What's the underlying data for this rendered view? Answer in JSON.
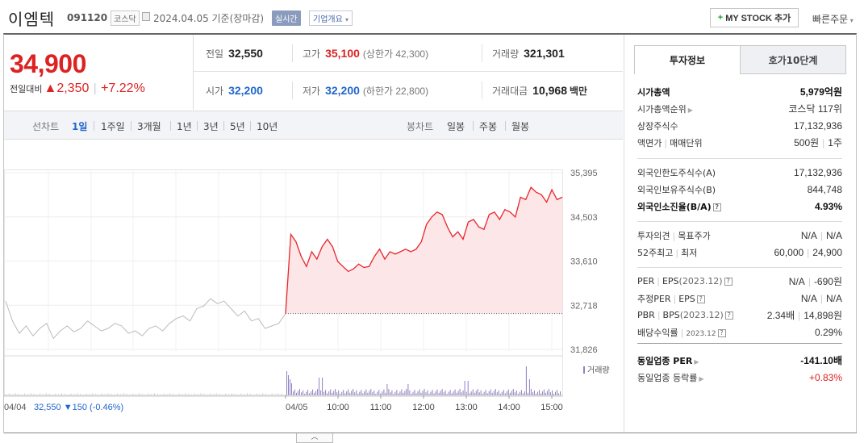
{
  "header": {
    "company_name": "이엠텍",
    "code": "091120",
    "market": "코스닥",
    "date_text": "2024.04.05  기준(장마감)",
    "realtime_label": "실시간",
    "company_info_label": "기업개요",
    "mystock_label": "MY STOCK 추가",
    "quick_order_label": "빠른주문"
  },
  "price": {
    "current": "34,900",
    "change_label": "전일대비",
    "change_value": "▲2,350",
    "change_pct": "+7.22%"
  },
  "stats": {
    "prev_close_label": "전일",
    "prev_close": "32,550",
    "high_label": "고가",
    "high": "35,100",
    "upper_limit": "(상한가 42,300)",
    "volume_label": "거래량",
    "volume": "321,301",
    "open_label": "시가",
    "open": "32,200",
    "low_label": "저가",
    "low": "32,200",
    "lower_limit": "(하한가 22,800)",
    "amount_label": "거래대금",
    "amount": "10,968",
    "amount_unit": "백만"
  },
  "toolbar": {
    "line_chart_label": "선차트",
    "periods": [
      "1일",
      "1주일",
      "3개월",
      "1년",
      "3년",
      "5년",
      "10년"
    ],
    "active_period": "1일",
    "candle_chart_label": "봉차트",
    "candle_periods": [
      "일봉",
      "주봉",
      "월봉"
    ]
  },
  "chart_data": {
    "type": "line",
    "y_ticks": [
      "35,395",
      "34,503",
      "33,610",
      "32,718",
      "31,826"
    ],
    "ylim": [
      31826,
      35395
    ],
    "baseline": 32550,
    "prev_day_label": "04/04",
    "prev_day_summary": "32,550 ▼150 (-0.46%)",
    "today_label": "04/05",
    "x_ticks": [
      "10:00",
      "11:00",
      "12:00",
      "13:00",
      "14:00",
      "15:00"
    ],
    "volume_legend": "거래량",
    "colors": {
      "up": "#e8262a",
      "fill": "#fde6e8",
      "prev": "#bbbbbb",
      "volume": "#8f7fc0",
      "baseline": "#666666"
    },
    "prev_series": [
      32800,
      32400,
      32150,
      32300,
      32100,
      32250,
      32350,
      32050,
      32200,
      32300,
      32180,
      32250,
      32400,
      32300,
      32200,
      32250,
      32350,
      32300,
      32150,
      32200,
      32100,
      32250,
      32300,
      32200,
      32350,
      32450,
      32500,
      32400,
      32650,
      32700,
      32850,
      32750,
      32800,
      32650,
      32500,
      32600,
      32400,
      32450,
      32250,
      32300,
      32350,
      32550
    ],
    "today_series": [
      32550,
      34150,
      34000,
      33700,
      33500,
      33800,
      33650,
      33900,
      34050,
      33900,
      33600,
      33500,
      33400,
      33450,
      33550,
      33480,
      33500,
      33700,
      33850,
      33650,
      33800,
      33750,
      33800,
      33850,
      33800,
      33850,
      34000,
      34350,
      34500,
      34600,
      34550,
      34300,
      34100,
      34200,
      34050,
      34400,
      34450,
      34300,
      34250,
      34550,
      34600,
      34450,
      34650,
      34600,
      34500,
      34900,
      34850,
      35100,
      35000,
      34950,
      34800,
      35050,
      34850,
      34900
    ]
  },
  "right_panel": {
    "tabs": [
      "투자정보",
      "호가10단계"
    ],
    "sec1": [
      {
        "k": "시가총액",
        "v": "5,979억원",
        "bold": true
      },
      {
        "k": "시가총액순위",
        "v": "코스닥 117위",
        "arrow": true
      },
      {
        "k": "상장주식수",
        "v": "17,132,936"
      },
      {
        "k": "액면가",
        "k2": "매매단위",
        "v": "500원",
        "v2": "1주"
      }
    ],
    "sec2": [
      {
        "k": "외국인한도주식수(A)",
        "v": "17,132,936"
      },
      {
        "k": "외국인보유주식수(B)",
        "v": "844,748"
      },
      {
        "k": "외국인소진율(B/A)",
        "v": "4.93%",
        "bold": true,
        "q": true
      }
    ],
    "sec3": [
      {
        "k": "투자의견",
        "k2": "목표주가",
        "v": "N/A",
        "v2": "N/A"
      },
      {
        "k": "52주최고",
        "k2": "최저",
        "v": "60,000",
        "v2": "24,900"
      }
    ],
    "sec4": [
      {
        "k": "PER",
        "k2": "EPS",
        "k3": "(2023.12)",
        "v": "N/A",
        "v2": "-690원",
        "q": true
      },
      {
        "k": "추정PER",
        "k2": "EPS",
        "v": "N/A",
        "v2": "N/A",
        "q": true
      },
      {
        "k": "PBR",
        "k2": "BPS",
        "k3": "(2023.12)",
        "v": "2.34배",
        "v2": "14,898원",
        "q": true
      },
      {
        "k": "배당수익률",
        "k3": "2023.12",
        "v": "0.29%",
        "q": true,
        "tiny": true
      }
    ],
    "sec5": [
      {
        "k": "동일업종 PER",
        "v": "-141.10배",
        "bold": true,
        "arrow": true
      },
      {
        "k": "동일업종 등락률",
        "v": "+0.83%",
        "up": true,
        "arrow": true
      }
    ]
  }
}
